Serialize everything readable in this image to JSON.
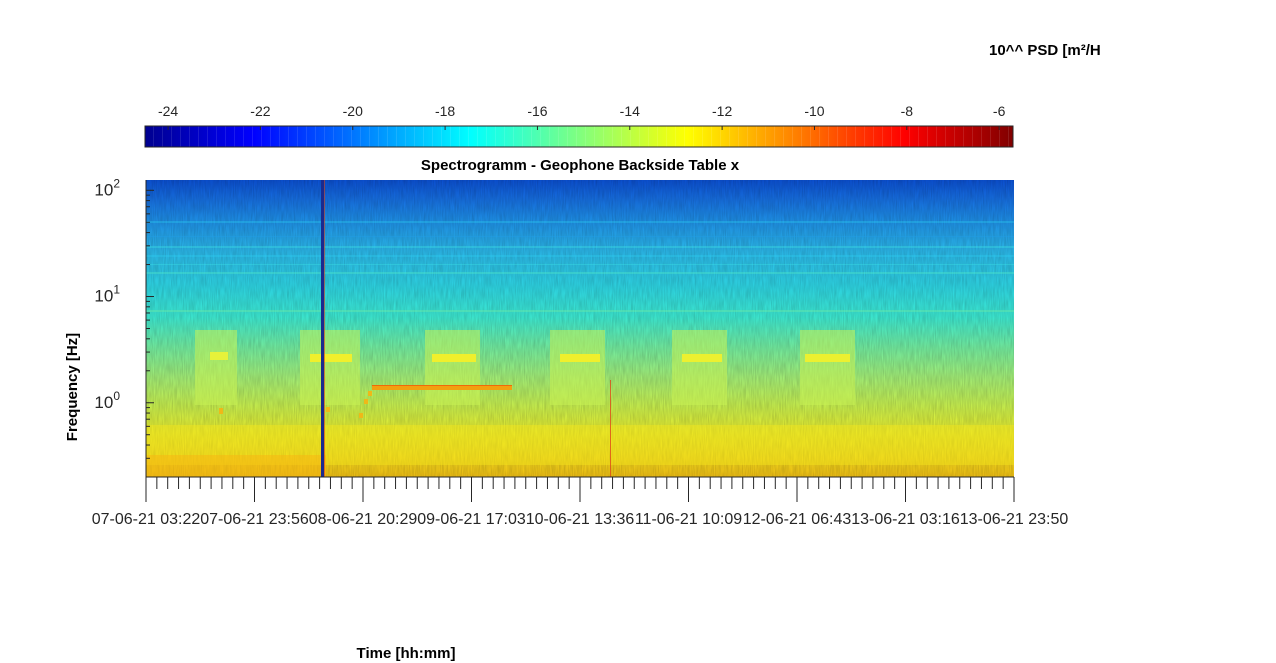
{
  "chart_data": {
    "type": "heatmap",
    "title": "Spectrogramm - Geophone Backside Table x",
    "xlabel": "Time [hh:mm]",
    "ylabel": "Frequency [Hz]",
    "colorbar": {
      "label": "10^^ PSD [m²/H",
      "range": [
        -24.5,
        -5.7
      ],
      "ticks": [
        -24,
        -22,
        -20,
        -18,
        -16,
        -14,
        -12,
        -10,
        -8,
        -6
      ],
      "colormap": "jet",
      "location": "top"
    },
    "x_ticks": [
      "07-06-21 03:22",
      "07-06-21 23:56",
      "08-06-21 20:29",
      "09-06-21 17:03",
      "10-06-21 13:36",
      "11-06-21 10:09",
      "12-06-21 06:43",
      "13-06-21 03:16",
      "13-06-21 23:50"
    ],
    "xlim": [
      "07-06-21 03:22",
      "13-06-21 23:50"
    ],
    "yscale": "log",
    "ylim": [
      0.2,
      125
    ],
    "y_ticks": [
      {
        "base": "10",
        "exp": "0",
        "value": 1
      },
      {
        "base": "10",
        "exp": "1",
        "value": 10
      },
      {
        "base": "10",
        "exp": "2",
        "value": 100
      }
    ],
    "grid": false
  }
}
